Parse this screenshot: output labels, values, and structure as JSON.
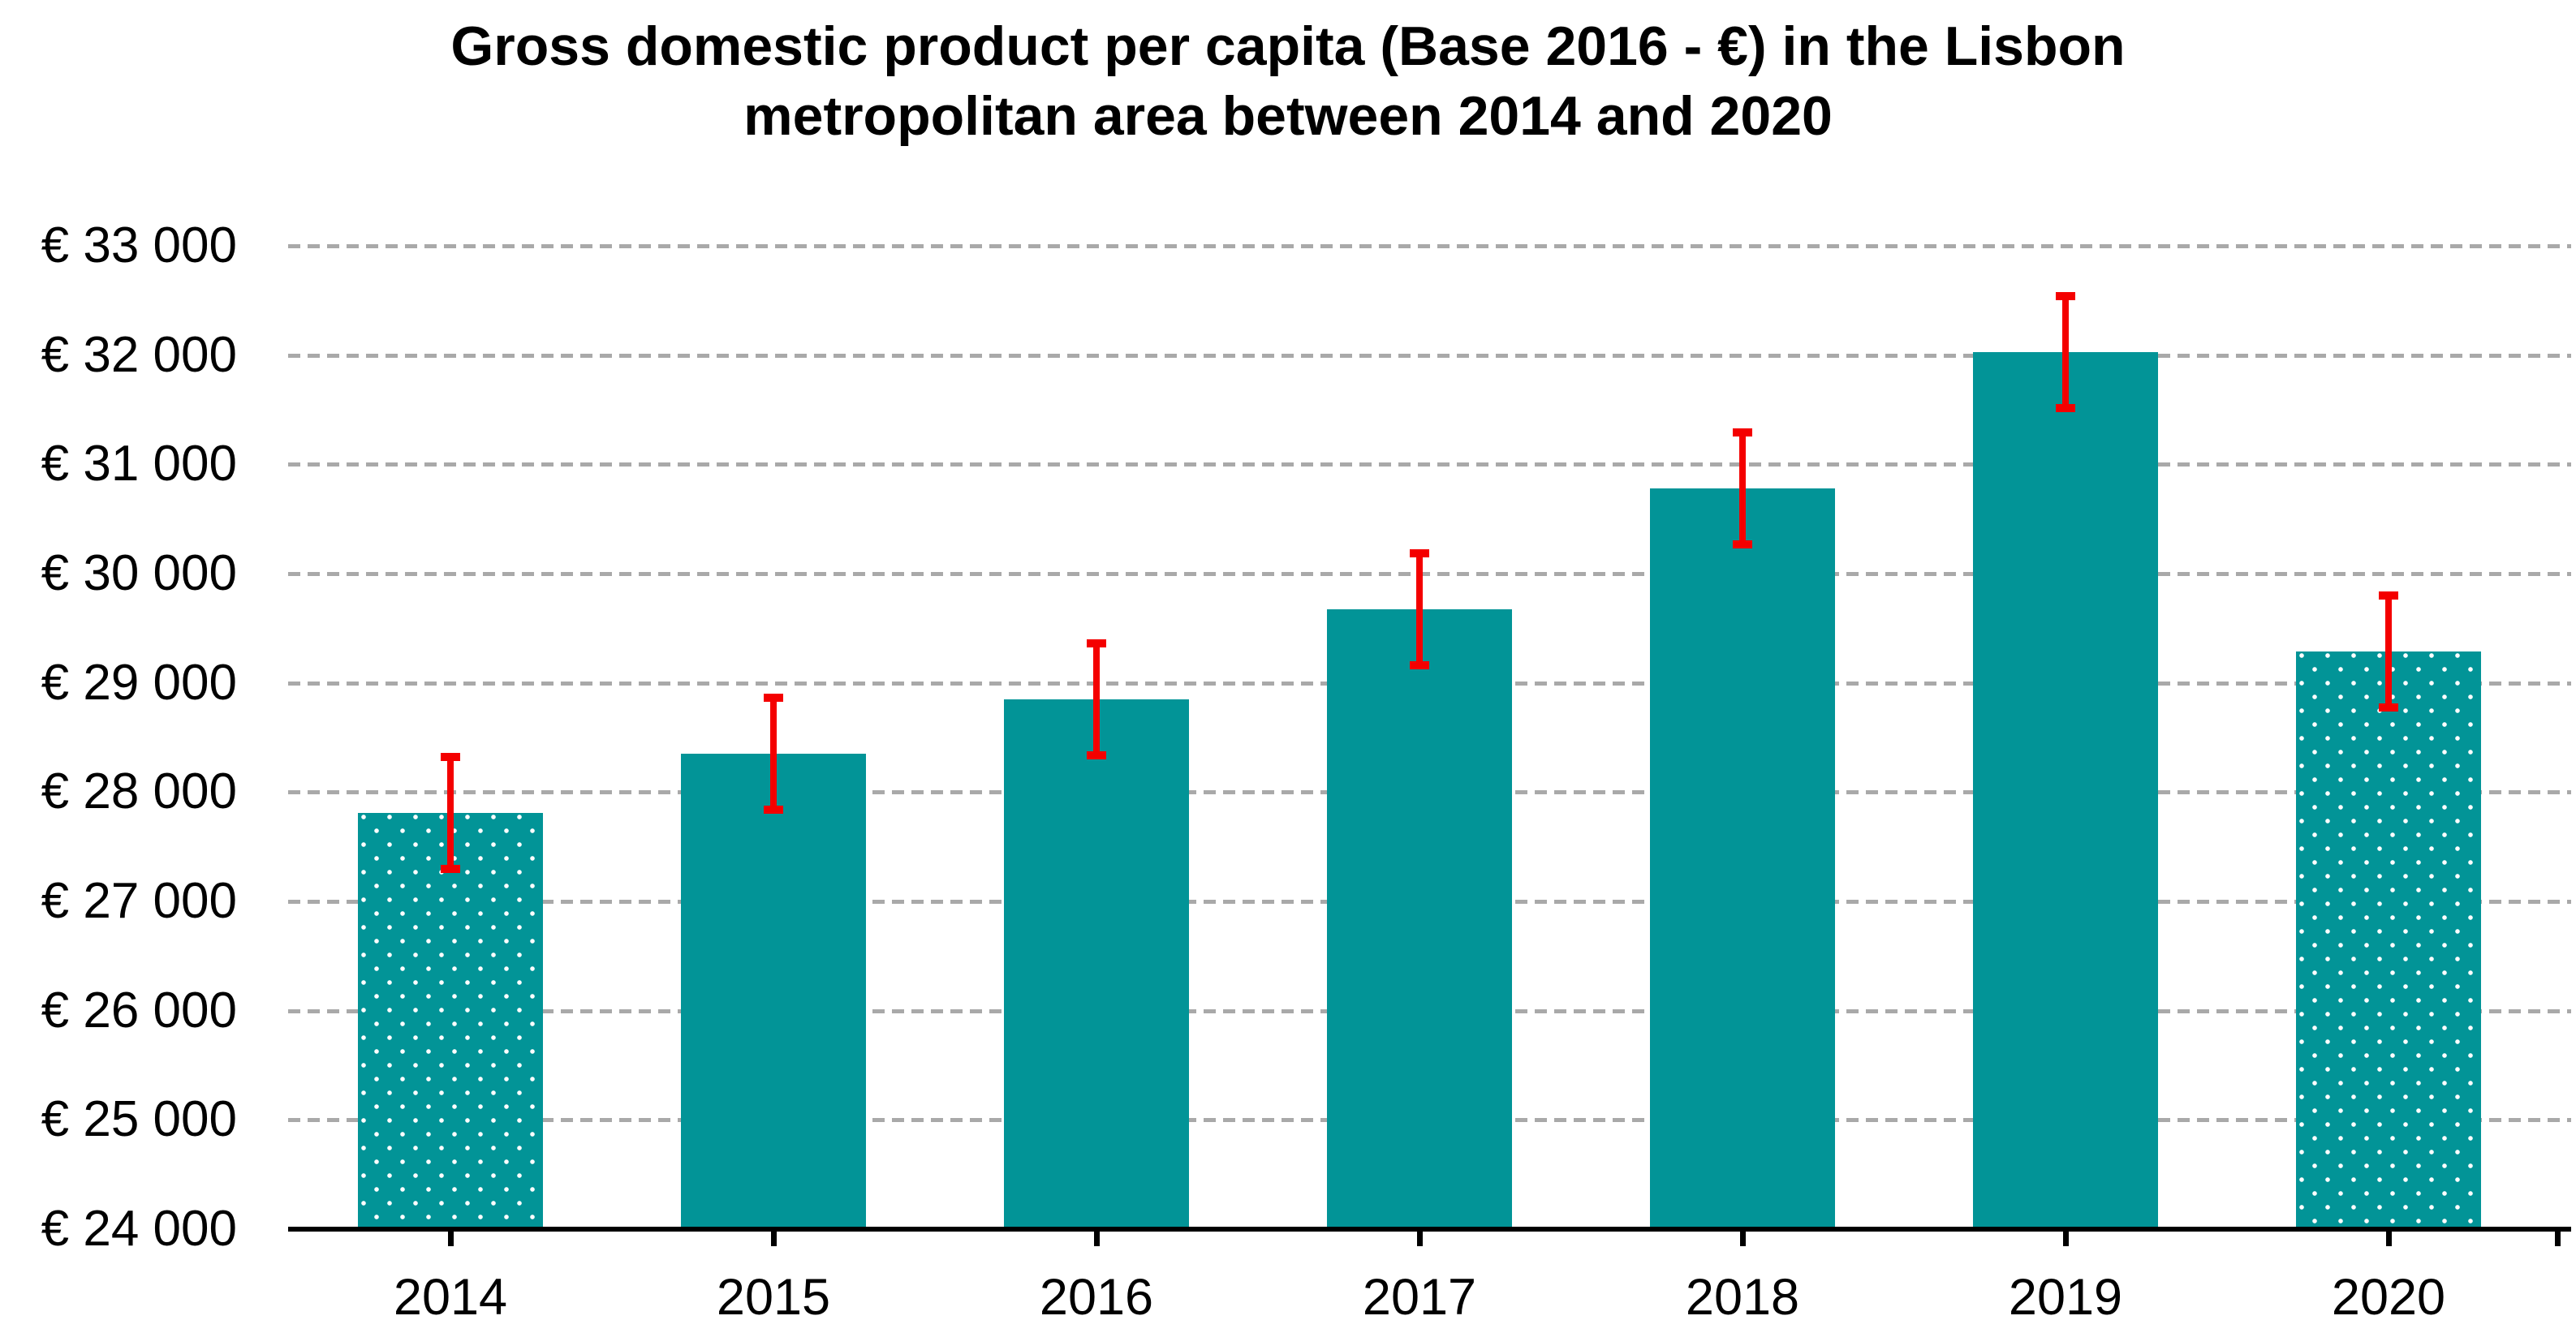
{
  "chart_data": {
    "type": "bar",
    "title": "Gross domestic product per capita (Base 2016 - €) in the Lisbon metropolitan area between 2014 and 2020",
    "title_lines": [
      "Gross domestic product per capita (Base 2016 - €) in the Lisbon",
      "metropolitan area between 2014 and 2020"
    ],
    "categories": [
      "2014",
      "2015",
      "2016",
      "2017",
      "2018",
      "2019",
      "2020"
    ],
    "series": [
      {
        "name": "GDP per capita (Base 2016 - €)",
        "values": [
          27810,
          28350,
          28850,
          29670,
          30780,
          32030,
          29290
        ]
      }
    ],
    "error_bars": {
      "type": "symmetric",
      "margin": 550,
      "color": "#f40000"
    },
    "patterned_categories": [
      "2014",
      "2020"
    ],
    "pattern_style": "white polka dots on teal",
    "ylim": [
      24000,
      33000
    ],
    "ytick_step": 1000,
    "yticks": [
      24000,
      25000,
      26000,
      27000,
      28000,
      29000,
      30000,
      31000,
      32000,
      33000
    ],
    "ytick_labels": [
      "€ 24 000",
      "€ 25 000",
      "€ 26 000",
      "€ 27 000",
      "€ 28 000",
      "€ 29 000",
      "€ 30 000",
      "€ 31 000",
      "€ 32 000",
      "€ 33 000"
    ],
    "xlabel": "",
    "ylabel": "",
    "legend": "none",
    "grid": {
      "horizontal": true,
      "style": "dashed",
      "color": "#a9a9a9"
    },
    "colors": {
      "bar": "#029497",
      "error": "#f40000",
      "gridline": "#a9a9a9",
      "axis": "#000000",
      "text": "#000000",
      "background": "#ffffff"
    }
  }
}
